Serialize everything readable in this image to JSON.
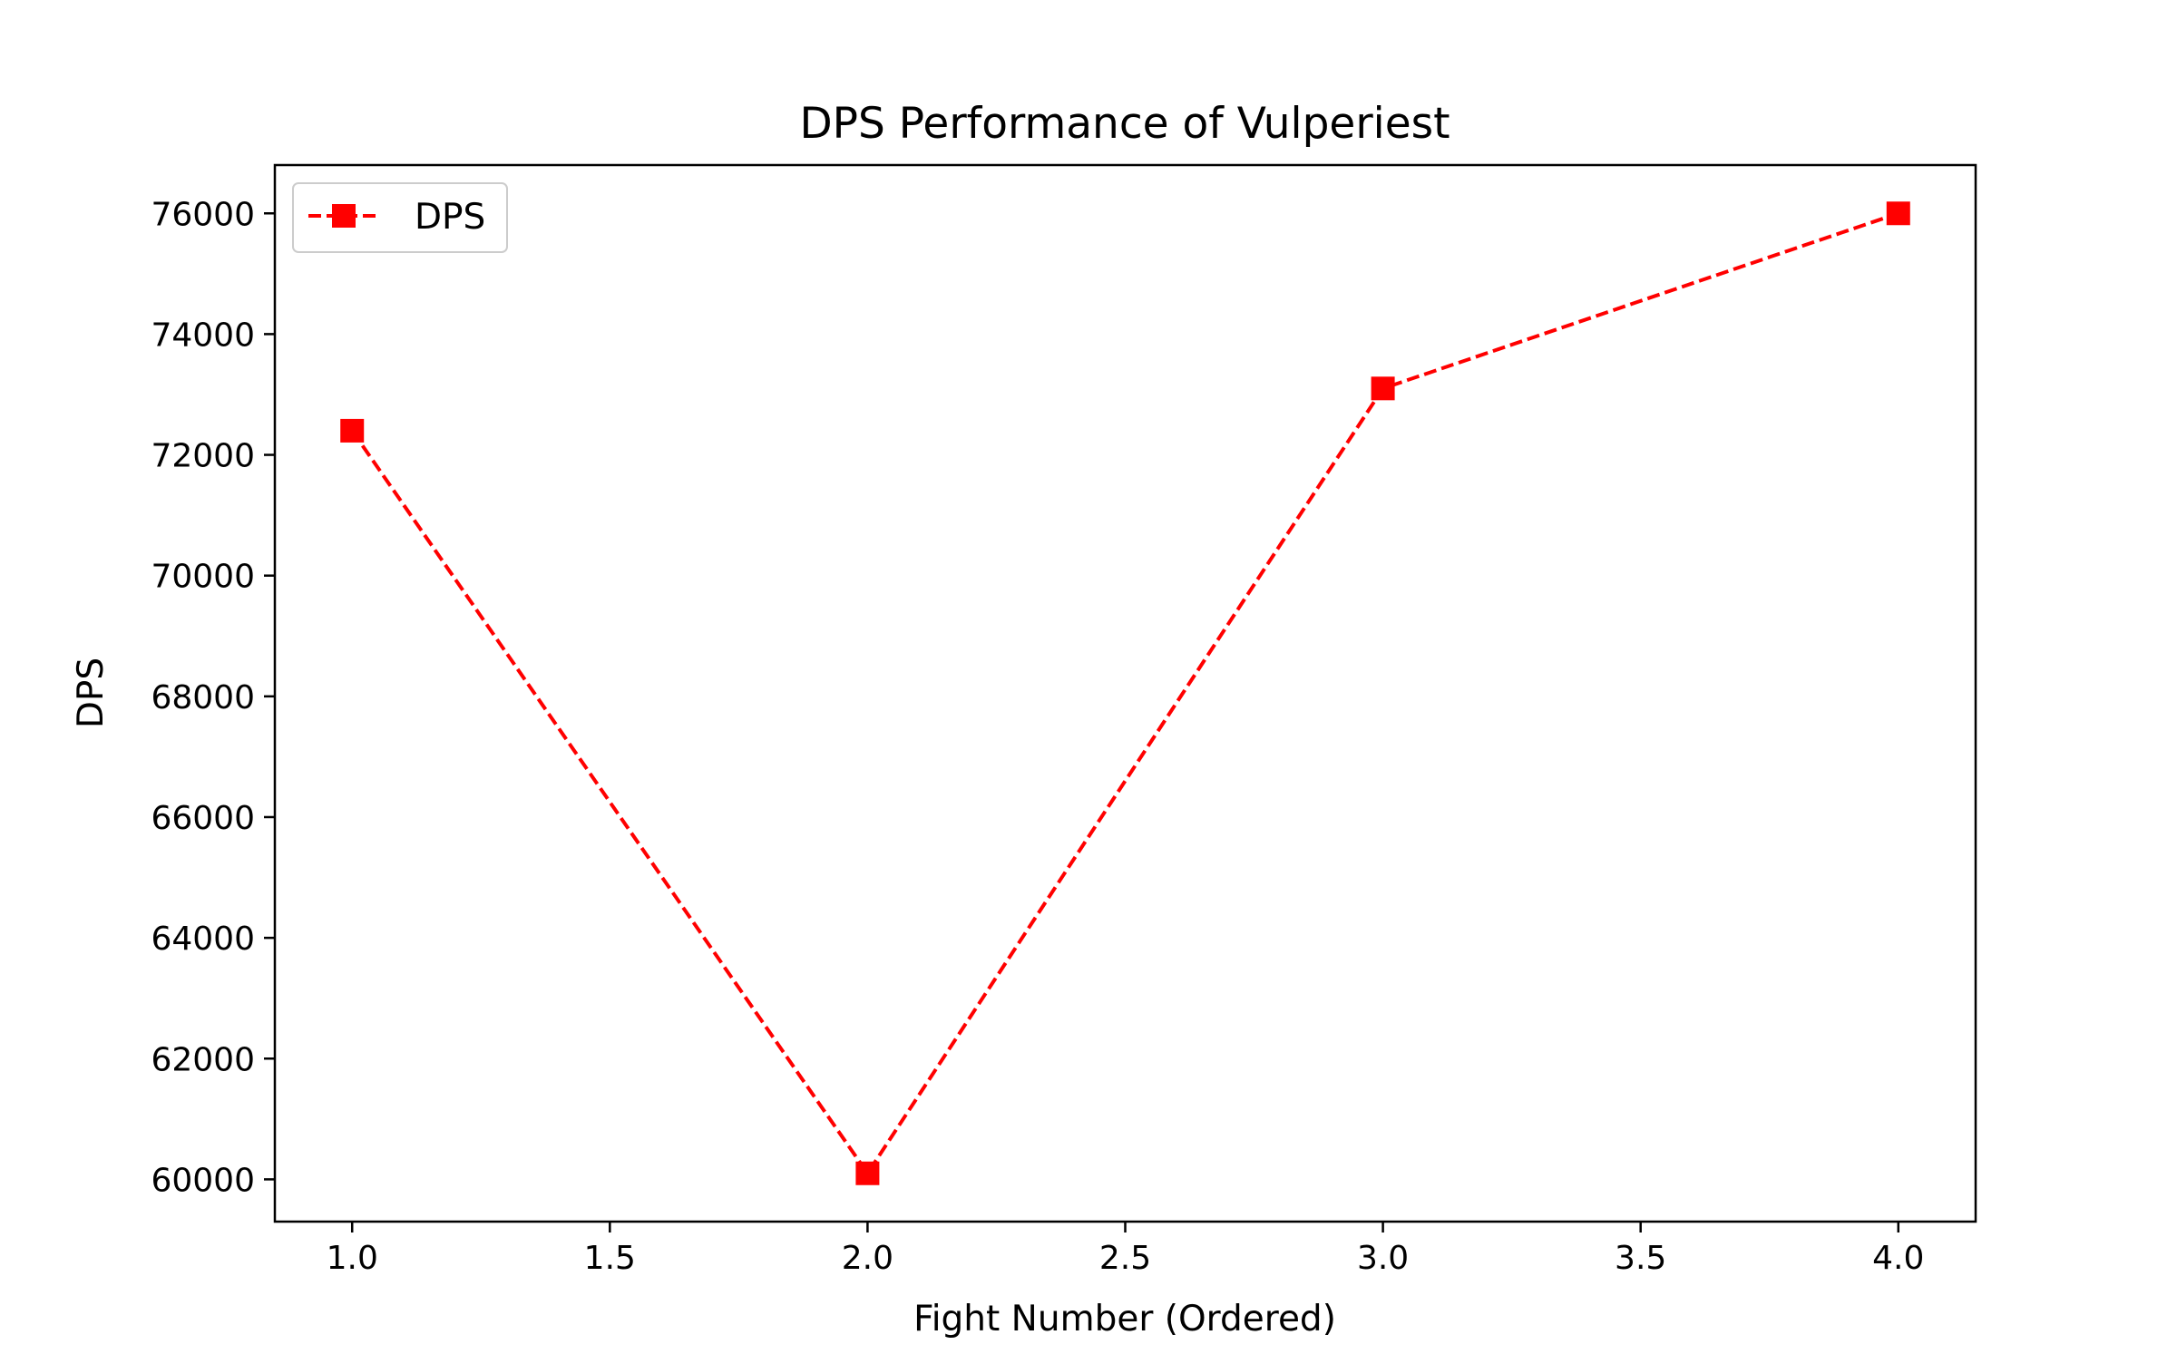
{
  "chart_data": {
    "type": "line",
    "title": "DPS Performance of Vulperiest",
    "xlabel": "Fight Number (Ordered)",
    "ylabel": "DPS",
    "xlim": [
      0.85,
      4.15
    ],
    "ylim": [
      59300,
      76800
    ],
    "xticks": [
      1.0,
      1.5,
      2.0,
      2.5,
      3.0,
      3.5,
      4.0
    ],
    "xtick_labels": [
      "1.0",
      "1.5",
      "2.0",
      "2.5",
      "3.0",
      "3.5",
      "4.0"
    ],
    "yticks": [
      60000,
      62000,
      64000,
      66000,
      68000,
      70000,
      72000,
      74000,
      76000
    ],
    "ytick_labels": [
      "60000",
      "62000",
      "64000",
      "66000",
      "68000",
      "70000",
      "72000",
      "74000",
      "76000"
    ],
    "grid": false,
    "legend_position": "top-left",
    "series": [
      {
        "name": "DPS",
        "color": "#ff0000",
        "line_style": "dashed",
        "marker": "square",
        "x": [
          1,
          2,
          3,
          4
        ],
        "y": [
          72400,
          60100,
          73100,
          76000
        ]
      }
    ]
  }
}
